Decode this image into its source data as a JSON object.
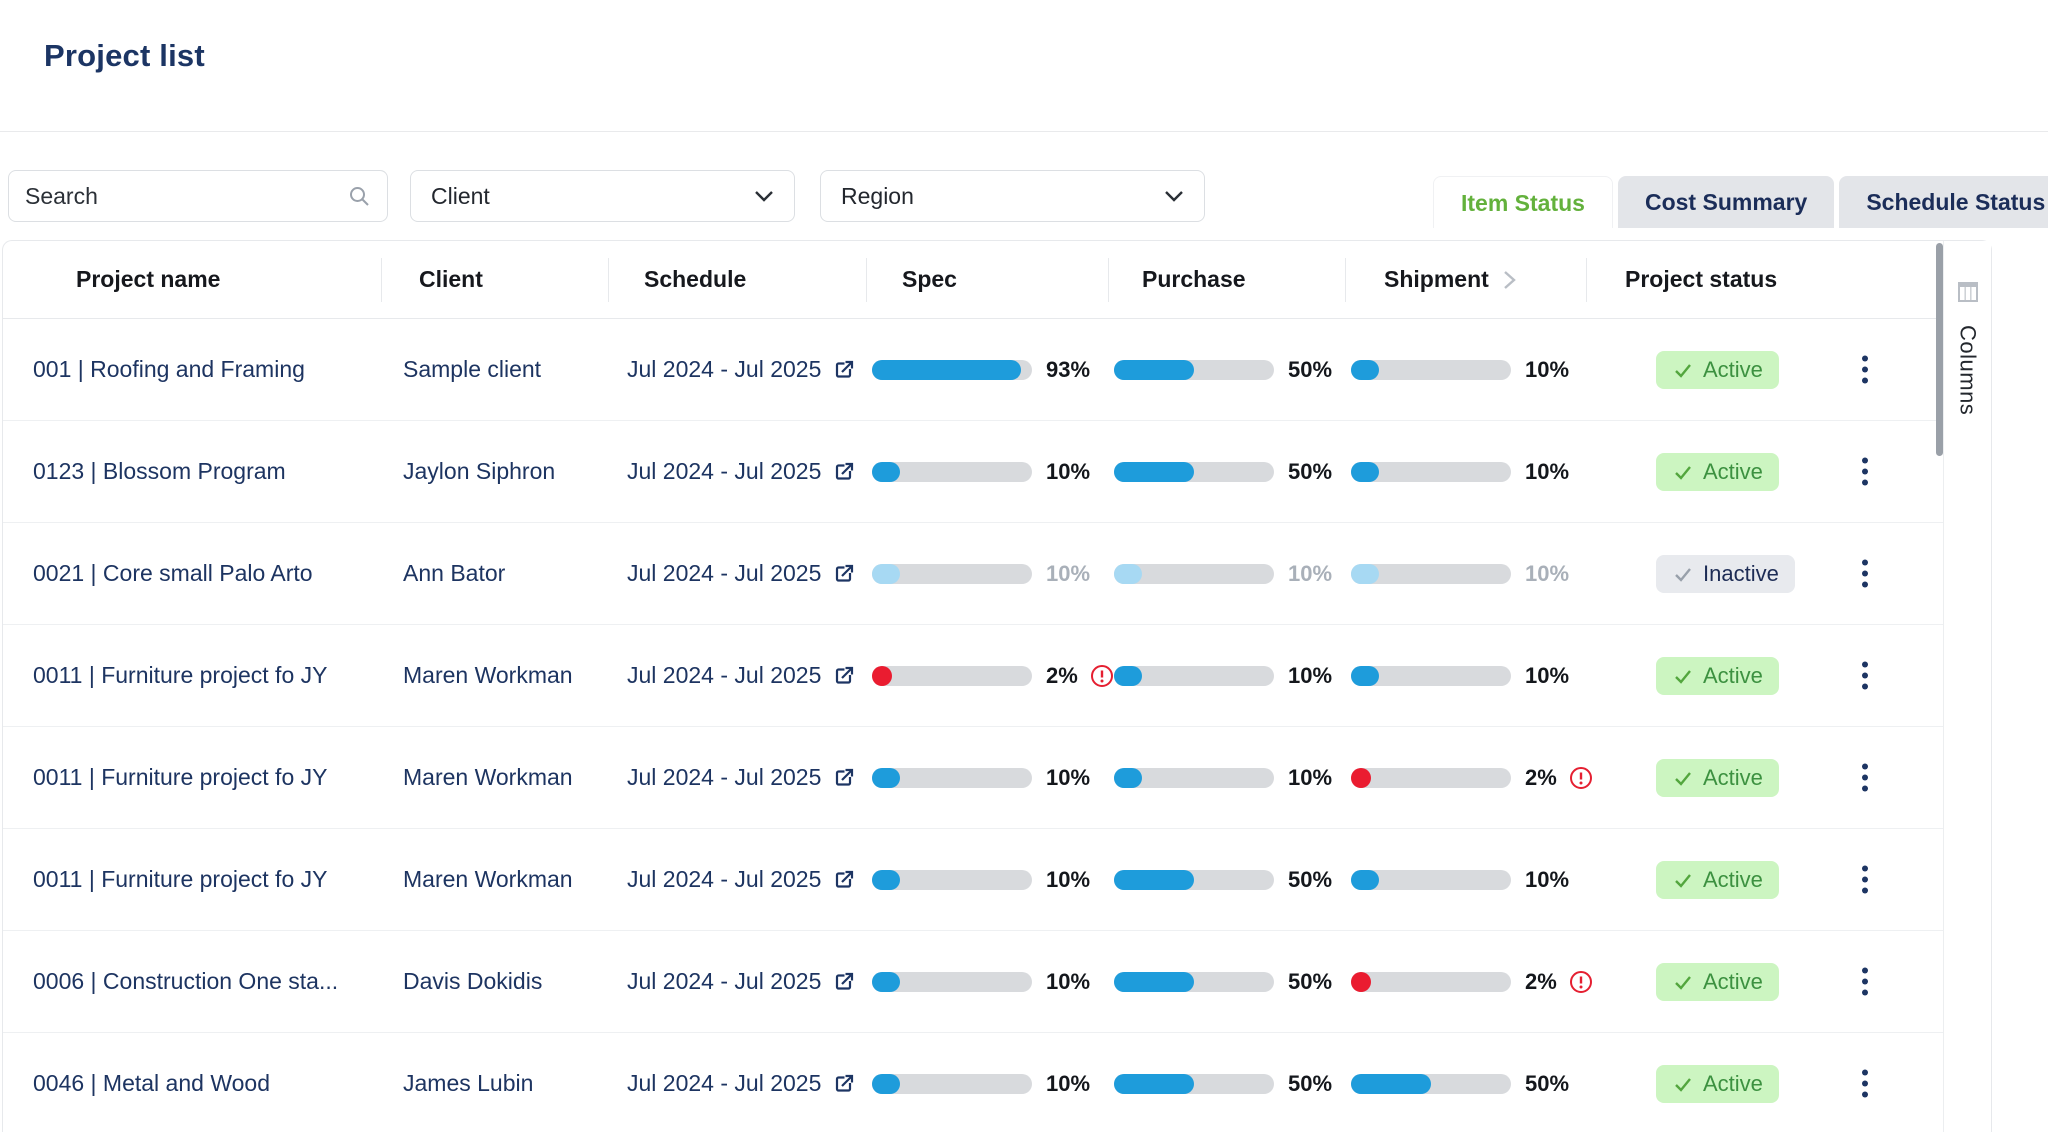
{
  "page": {
    "title": "Project list"
  },
  "filters": {
    "search_placeholder": "Search",
    "client_label": "Client",
    "region_label": "Region"
  },
  "tabs": [
    {
      "label": "Item Status",
      "active": true
    },
    {
      "label": "Cost Summary",
      "active": false
    },
    {
      "label": "Schedule Status",
      "active": false
    }
  ],
  "side_panel": {
    "columns_label": "Columns"
  },
  "table": {
    "columns": [
      "Project name",
      "Client",
      "Schedule",
      "Spec",
      "Purchase",
      "Shipment",
      "Project status"
    ],
    "rows": [
      {
        "name": "001 | Roofing and Framing",
        "client": "Sample client",
        "schedule": "Jul 2024 - Jul 2025",
        "spec": {
          "value": 93
        },
        "purchase": {
          "value": 50
        },
        "shipment": {
          "value": 10
        },
        "status": {
          "label": "Active",
          "key": "active"
        },
        "muted": false
      },
      {
        "name": "0123 |  Blossom Program",
        "client": "Jaylon Siphron",
        "schedule": "Jul 2024 - Jul 2025",
        "spec": {
          "value": 10
        },
        "purchase": {
          "value": 50
        },
        "shipment": {
          "value": 10
        },
        "status": {
          "label": "Active",
          "key": "active"
        },
        "muted": false
      },
      {
        "name": "0021 | Core small Palo Arto",
        "client": "Ann Bator",
        "schedule": "Jul 2024 - Jul 2025",
        "spec": {
          "value": 10
        },
        "purchase": {
          "value": 10
        },
        "shipment": {
          "value": 10
        },
        "status": {
          "label": "Inactive",
          "key": "inactive"
        },
        "muted": true
      },
      {
        "name": "0011 | Furniture project fo JY",
        "client": "Maren Workman",
        "schedule": "Jul 2024 - Jul 2025",
        "spec": {
          "value": 2,
          "warning": true
        },
        "purchase": {
          "value": 10
        },
        "shipment": {
          "value": 10
        },
        "status": {
          "label": "Active",
          "key": "active"
        },
        "muted": false
      },
      {
        "name": "0011 | Furniture project fo JY",
        "client": "Maren Workman",
        "schedule": "Jul 2024 - Jul 2025",
        "spec": {
          "value": 10
        },
        "purchase": {
          "value": 10
        },
        "shipment": {
          "value": 2,
          "warning": true
        },
        "status": {
          "label": "Active",
          "key": "active"
        },
        "muted": false
      },
      {
        "name": "0011 | Furniture project fo JY",
        "client": "Maren Workman",
        "schedule": "Jul 2024 - Jul 2025",
        "spec": {
          "value": 10
        },
        "purchase": {
          "value": 50
        },
        "shipment": {
          "value": 10
        },
        "status": {
          "label": "Active",
          "key": "active"
        },
        "muted": false
      },
      {
        "name": "0006 | Construction One sta...",
        "client": "Davis Dokidis",
        "schedule": "Jul 2024 - Jul 2025",
        "spec": {
          "value": 10
        },
        "purchase": {
          "value": 50
        },
        "shipment": {
          "value": 2,
          "warning": true
        },
        "status": {
          "label": "Active",
          "key": "active"
        },
        "muted": false
      },
      {
        "name": "0046 | Metal and Wood",
        "client": "James Lubin",
        "schedule": "Jul 2024 - Jul 2025",
        "spec": {
          "value": 10
        },
        "purchase": {
          "value": 50
        },
        "shipment": {
          "value": 50
        },
        "status": {
          "label": "Active",
          "key": "active"
        },
        "muted": false
      }
    ]
  },
  "colors": {
    "navy_text": "#1d3461",
    "progress_blue": "#1e9cdb",
    "progress_blue_muted": "#a7d9f3",
    "progress_red": "#ea1c30",
    "track_gray": "#d8dadd",
    "tab_active_green": "#63b13c",
    "badge_active_bg": "#ccf5c1",
    "badge_active_text": "#3c9140",
    "badge_inactive_bg": "#e8eaee",
    "warning_red": "#e51f31"
  }
}
